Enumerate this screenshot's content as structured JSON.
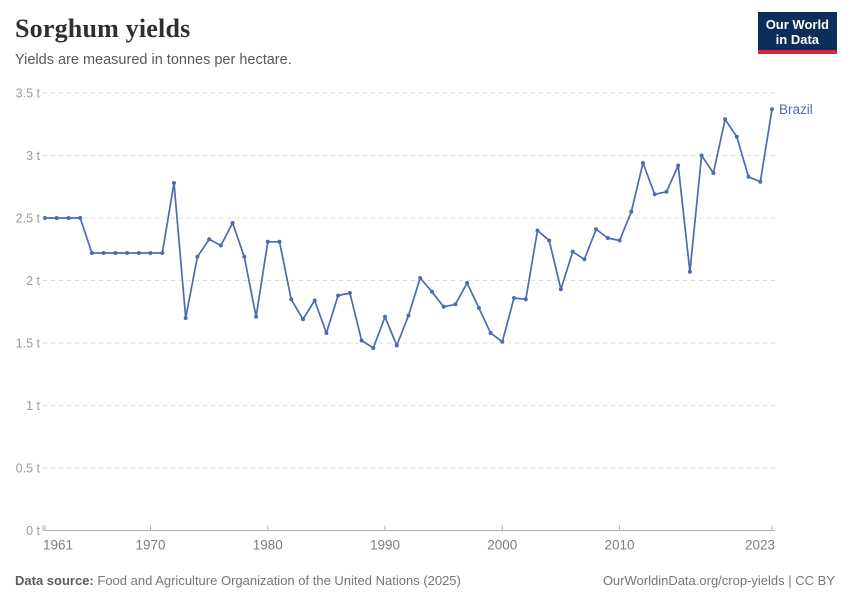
{
  "header": {
    "title": "Sorghum yields",
    "subtitle": "Yields are measured in tonnes per hectare.",
    "logo": {
      "line1": "Our World",
      "line2": "in Data",
      "bg_color": "#0d2e5a",
      "bar_color": "#d7273e"
    }
  },
  "chart_data": {
    "type": "line",
    "title": "Sorghum yields",
    "ylabel": "tonnes per hectare",
    "unit_suffix": " t",
    "ylim": [
      0,
      3.5
    ],
    "ytick_values": [
      0,
      0.5,
      1,
      1.5,
      2,
      2.5,
      3,
      3.5
    ],
    "ytick_labels": [
      "0 t",
      "0.5 t",
      "1 t",
      "1.5 t",
      "2 t",
      "2.5 t",
      "3 t",
      "3.5 t"
    ],
    "xlim": [
      1961,
      2023
    ],
    "xtick_values": [
      1961,
      1970,
      1980,
      1990,
      2000,
      2010,
      2023
    ],
    "grid": "horizontal-dashed",
    "legend_position": "end-of-line",
    "colors": {
      "line": "#4C6CAE",
      "grid": "#dcdcdc",
      "axis": "#b0b0b0",
      "ytick_text": "#9c9c9c",
      "xtick_text": "#7d7d7d"
    },
    "series": [
      {
        "name": "Brazil",
        "color": "#4C6CAE",
        "x": [
          1961,
          1962,
          1963,
          1964,
          1965,
          1966,
          1967,
          1968,
          1969,
          1970,
          1971,
          1972,
          1973,
          1974,
          1975,
          1976,
          1977,
          1978,
          1979,
          1980,
          1981,
          1982,
          1983,
          1984,
          1985,
          1986,
          1987,
          1988,
          1989,
          1990,
          1991,
          1992,
          1993,
          1994,
          1995,
          1996,
          1997,
          1998,
          1999,
          2000,
          2001,
          2002,
          2003,
          2004,
          2005,
          2006,
          2007,
          2008,
          2009,
          2010,
          2011,
          2012,
          2013,
          2014,
          2015,
          2016,
          2017,
          2018,
          2019,
          2020,
          2021,
          2022,
          2023
        ],
        "values": [
          2.5,
          2.5,
          2.5,
          2.5,
          2.22,
          2.22,
          2.22,
          2.22,
          2.22,
          2.22,
          2.22,
          2.78,
          1.7,
          2.19,
          2.33,
          2.28,
          2.46,
          2.19,
          1.71,
          2.31,
          2.31,
          1.85,
          1.69,
          1.84,
          1.58,
          1.88,
          1.9,
          1.52,
          1.46,
          1.71,
          1.48,
          1.72,
          2.02,
          1.91,
          1.79,
          1.81,
          1.98,
          1.78,
          1.58,
          1.51,
          1.86,
          1.85,
          2.4,
          2.32,
          1.93,
          2.23,
          2.17,
          2.41,
          2.34,
          2.32,
          2.55,
          2.94,
          2.69,
          2.71,
          2.92,
          2.07,
          3.0,
          2.86,
          3.29,
          3.15,
          2.83,
          2.79,
          3.37
        ]
      }
    ]
  },
  "footer": {
    "source_label": "Data source:",
    "source_value": "Food and Agriculture Organization of the United Nations (2025)",
    "link_text": "OurWorldinData.org/crop-yields",
    "license_text": "CC BY",
    "separator": " | "
  }
}
